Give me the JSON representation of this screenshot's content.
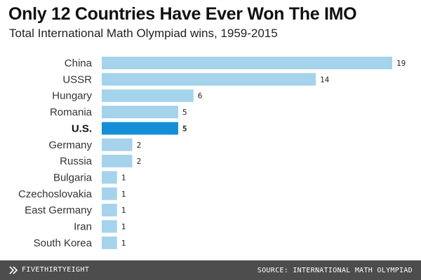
{
  "colors": {
    "bar": "#a5d3ec",
    "highlight": "#148fd6",
    "label": "#333333",
    "value": "#222222",
    "footer_bg": "#4d4d4d"
  },
  "chart_data": {
    "type": "bar",
    "orientation": "horizontal",
    "title": "Only 12 Countries Have Ever Won The IMO",
    "subtitle": "Total International Math Olympiad wins, 1959-2015",
    "categories": [
      "China",
      "USSR",
      "Hungary",
      "Romania",
      "U.S.",
      "Germany",
      "Russia",
      "Bulgaria",
      "Czechoslovakia",
      "East Germany",
      "Iran",
      "South Korea"
    ],
    "values": [
      19,
      14,
      6,
      5,
      5,
      2,
      2,
      1,
      1,
      1,
      1,
      1
    ],
    "highlight": "U.S.",
    "xlim": [
      0,
      19
    ],
    "xlabel": "",
    "ylabel": "",
    "grid": false
  },
  "footer": {
    "brand": "FIVETHIRTYEIGHT",
    "brand_icon": "fivethirtyeight-logo-icon",
    "source": "SOURCE: INTERNATIONAL MATH OLYMPIAD"
  }
}
